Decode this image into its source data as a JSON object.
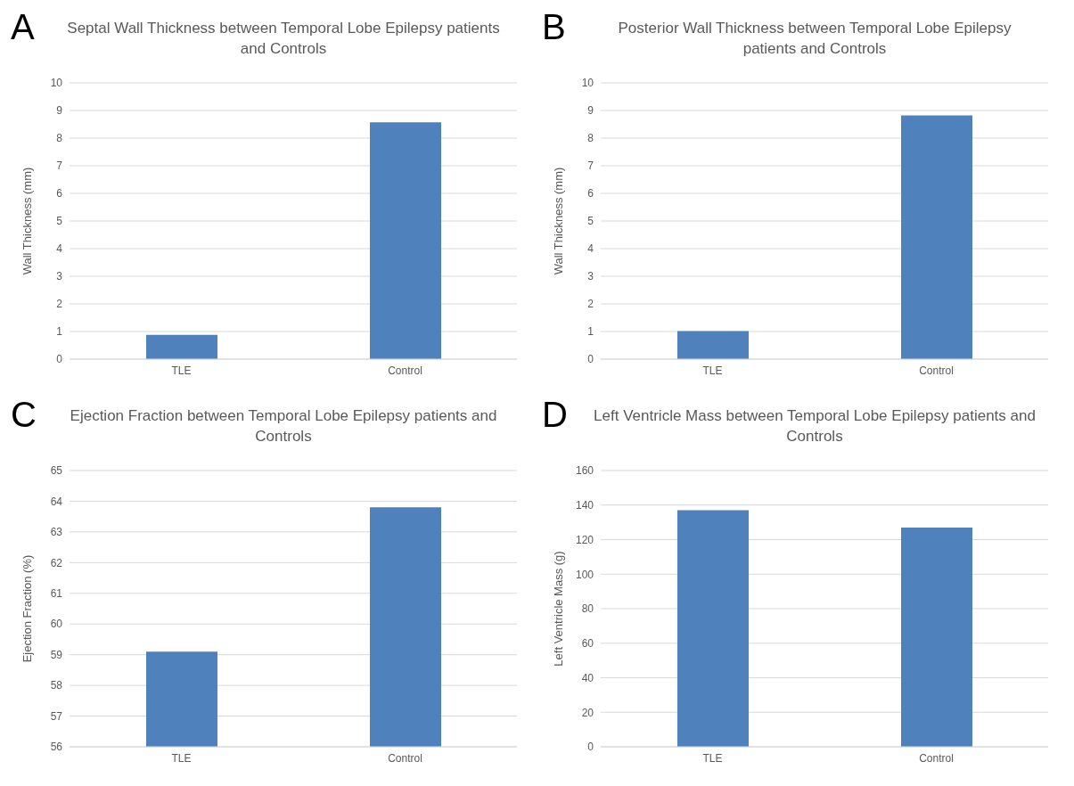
{
  "chart_data": [
    {
      "type": "bar",
      "annotations": [
        "A"
      ],
      "title": "Septal Wall Thickness between Temporal Lobe Epilepsy patients and Controls",
      "ylabel": "Wall Thickness (mm)",
      "categories": [
        "TLE",
        "Control"
      ],
      "values": [
        0.88,
        8.57
      ],
      "color": "#4f81bd",
      "ylim": [
        0,
        10
      ],
      "yticks": [
        0,
        1,
        2,
        3,
        4,
        5,
        6,
        7,
        8,
        9,
        10
      ],
      "grid": "y"
    },
    {
      "type": "bar",
      "annotations": [
        "B"
      ],
      "title": "Posterior Wall Thickness between Temporal Lobe Epilepsy patients and Controls",
      "ylabel": "Wall Thickness (mm)",
      "categories": [
        "TLE",
        "Control"
      ],
      "values": [
        1.02,
        8.82
      ],
      "color": "#4f81bd",
      "ylim": [
        0,
        10
      ],
      "yticks": [
        0,
        1,
        2,
        3,
        4,
        5,
        6,
        7,
        8,
        9,
        10
      ],
      "grid": "y"
    },
    {
      "type": "bar",
      "annotations": [
        "C"
      ],
      "title": "Ejection Fraction between Temporal Lobe Epilepsy patients and Controls",
      "ylabel": "Ejection Fraction (%)",
      "categories": [
        "TLE",
        "Control"
      ],
      "values": [
        59.1,
        63.8
      ],
      "color": "#4f81bd",
      "ylim": [
        56,
        65
      ],
      "yticks": [
        56,
        57,
        58,
        59,
        60,
        61,
        62,
        63,
        64,
        65
      ],
      "grid": "y"
    },
    {
      "type": "bar",
      "annotations": [
        "D"
      ],
      "title": "Left Ventricle Mass between Temporal Lobe Epilepsy patients and Controls",
      "ylabel": "Left Ventricle Mass (g)",
      "categories": [
        "TLE",
        "Control"
      ],
      "values": [
        137,
        127
      ],
      "color": "#4f81bd",
      "ylim": [
        0,
        160
      ],
      "yticks": [
        0,
        20,
        40,
        60,
        80,
        100,
        120,
        140,
        160
      ],
      "grid": "y"
    }
  ]
}
